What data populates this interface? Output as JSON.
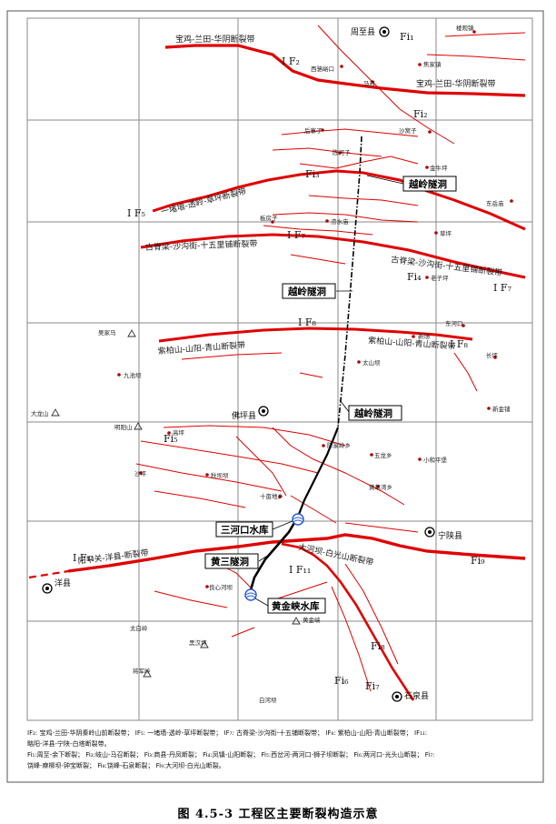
{
  "caption": "图 4.5-3   工程区主要断裂构造示意",
  "legend": {
    "line1": "IF₂: 宝鸡-兰田-华阴秦岭山前断裂带；  IF₅: 一堵墙-透岭-草坪断裂带；  IF₇: 古脊梁-沙沟街-十五铺断裂带；  IF₈: 紫柏山-山阳-青山断裂带；  IF₁₁:",
    "line2": "略阳-洋县-宁陕-白塔断裂带。",
    "line3": "Fi₁:周至-余下断裂；  Fi₂:岐山-马召断裂；  Fi₃:商县-丹凤断裂；  Fi₄:凤镇-山阳断裂；  Fi₅:西岔河-两河口-狮子坝断裂；  Fi₆:两河口-光头山断裂；  Fi₇:",
    "line4": "饶峰-麻柳坝-钟宝断裂；  Fi₈:饶峰-石泉断裂；  Fi₉:大河坝-白光山断裂。"
  },
  "faults": {
    "f2_name": "宝鸡-兰田-华阴断裂带",
    "f2_code": "I F₂",
    "f5_name": "一堵墙-透岭-草坪断裂带",
    "f5_code": "I F₅",
    "f7_name": "古脊梁-沙沟街-十五里铺断裂带",
    "f7_code": "I F₇",
    "f8_name": "紫柏山-山阳-青山断裂带",
    "f8_code": "I F₈",
    "f11_name": "阳平关-洋县-断裂带",
    "f11_code": "I F₁₁",
    "f9_name": "大河坝-白光山断裂带",
    "fi1": "Fi₁",
    "fi2": "Fi₂",
    "fi3": "Fi₃",
    "fi4": "Fi₄",
    "fi5": "Fi₅",
    "fi6": "Fi₆",
    "fi7": "Fi₇",
    "fi8": "Fi₈",
    "fi9": "Fi₉"
  },
  "engineering": {
    "tunnel": "越岭隧洞",
    "reservoir_sanhekou": "三河口水库",
    "tunnel_huangsan": "黄三隧洞",
    "reservoir_huangjinxia": "黄金峡水库"
  },
  "counties": {
    "zhouzhi": "周至县",
    "foping": "佛坪县",
    "ningshan": "宁陕县",
    "yangxian": "洋县",
    "shiquan": "石泉县"
  },
  "towns": {
    "louguan": "楼观镇",
    "xilouyu": "西骆峪口",
    "majiazhen": "焦家镇",
    "mazhao": "马召",
    "houzhenzi": "后寨子",
    "shahuazi": "沙窝子",
    "chenhezi": "陈河子",
    "jinniuping": "金牛坪",
    "dongyangzhen": "东岳庙",
    "banfangzi": "板房子",
    "luoshuidong": "涝水庙",
    "caoping": "草坪",
    "lengzi": "老子坪",
    "dongheko": "东河口",
    "xinchang": "新场",
    "taishanba": "太山坝",
    "changping": "长坪",
    "wujiaba": "吴家马",
    "jiuchiba": "九池坝",
    "dalongshan": "大龙山",
    "mingyangshan": "明阳山",
    "xinjinpu": "新金铺",
    "gaoping": "高坪",
    "qiuxiba": "秋坝坝",
    "chenjialingfu": "陈家岭乡",
    "wulongxiang": "五龙乡",
    "shiguzhen": "十亩地乡",
    "xiaoheping": "小和平堡",
    "jiaoheweixiang": "黄草湾乡",
    "shaping": "沙坪",
    "huangjinhe": "黄金峡",
    "liangxin": "良心河坝",
    "taibaiding": "太白岭",
    "jiangjunling": "将军岭",
    "wanghuiling": "黑汉坪",
    "baiheba": "白河坝"
  },
  "colors": {
    "fault": "#e00000",
    "tunnel": "#000000",
    "grid": "#8a8a8a",
    "reservoir": "#2a5bd7"
  }
}
